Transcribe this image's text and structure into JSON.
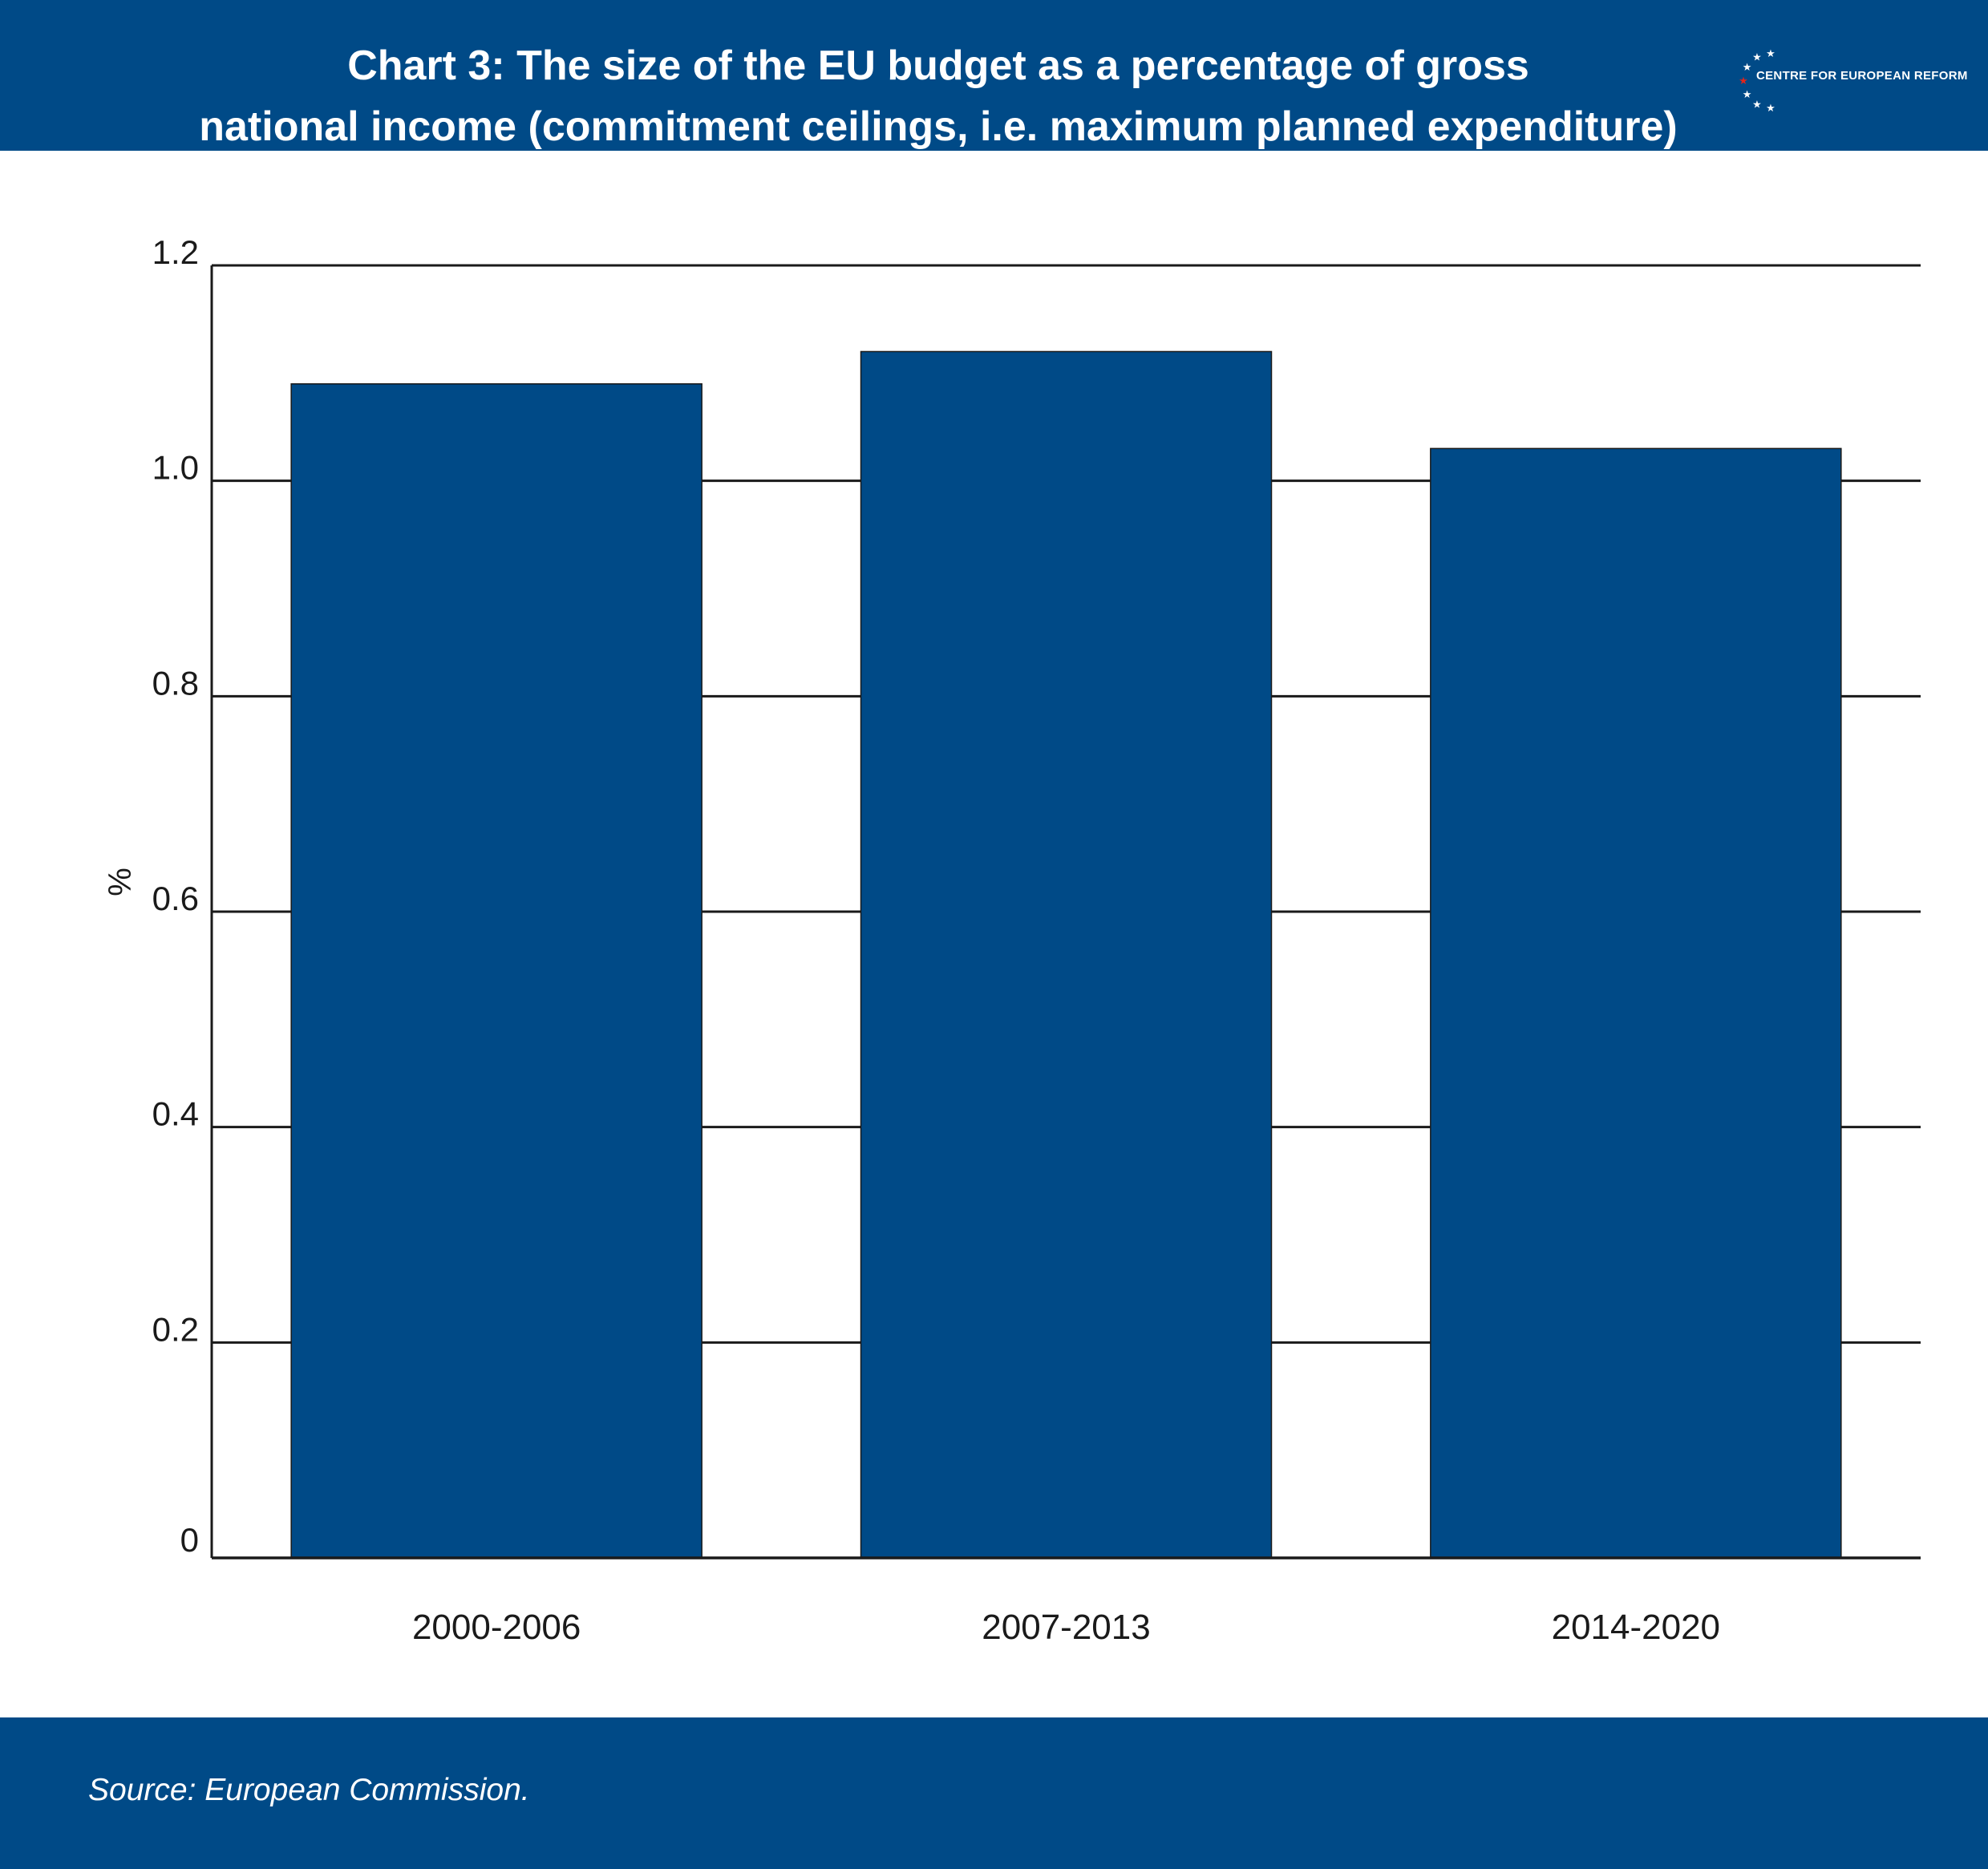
{
  "header": {
    "title_line1": "Chart 3: The size of the EU budget as a percentage of gross",
    "title_line2": "national income (commitment ceilings, i.e. maximum planned expenditure)",
    "logo_text": "CENTRE FOR EUROPEAN REFORM"
  },
  "footer": {
    "source": "Source: European Commission."
  },
  "colors": {
    "brand": "#004a87",
    "bar": "#004a87",
    "grid": "#1a1a1a",
    "logo_accent": "#e1251b"
  },
  "chart_data": {
    "type": "bar",
    "categories": [
      "2000-2006",
      "2007-2013",
      "2014-2020"
    ],
    "values": [
      1.09,
      1.12,
      1.03
    ],
    "ylabel": "%",
    "ylim": [
      0,
      1.2
    ],
    "yticks": [
      0,
      0.2,
      0.4,
      0.6,
      0.8,
      1.0,
      1.2
    ],
    "ytick_labels": [
      "0",
      "0.2",
      "0.4",
      "0.6",
      "0.8",
      "1.0",
      "1.2"
    ],
    "grid": true
  }
}
